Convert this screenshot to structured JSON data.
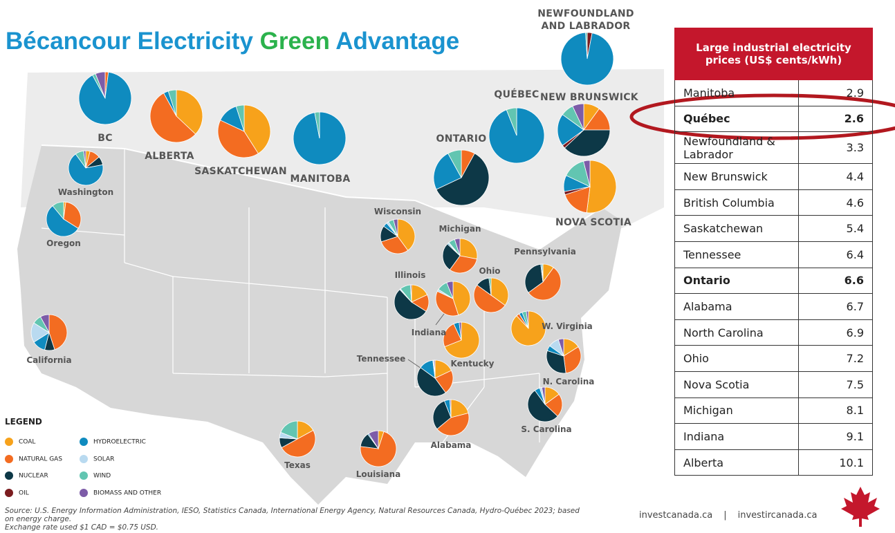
{
  "title": {
    "part1": "Bécancour Electricity",
    "part2": "Green",
    "part3": "Advantage"
  },
  "legend": {
    "title": "LEGEND",
    "items": [
      {
        "label": "COAL",
        "color": "#f7a21b"
      },
      {
        "label": "NATURAL GAS",
        "color": "#f36c21"
      },
      {
        "label": "NUCLEAR",
        "color": "#0d3847"
      },
      {
        "label": "OIL",
        "color": "#7b1c1f"
      },
      {
        "label": "HYDROELECTRIC",
        "color": "#0f8bbf"
      },
      {
        "label": "SOLAR",
        "color": "#b9daf0"
      },
      {
        "label": "WIND",
        "color": "#62c5b1"
      },
      {
        "label": "BIOMASS AND OTHER",
        "color": "#7d5ca8"
      }
    ]
  },
  "regions": [
    {
      "label": "BC",
      "shares": [
        0,
        2,
        0,
        0,
        90,
        0,
        2,
        6
      ]
    },
    {
      "label": "ALBERTA",
      "shares": [
        37,
        55,
        0,
        0,
        3,
        0,
        5,
        0
      ]
    },
    {
      "label": "SASKATCHEWAN",
      "shares": [
        41,
        41,
        0,
        0,
        13,
        0,
        5,
        0
      ]
    },
    {
      "label": "MANITOBA",
      "shares": [
        0,
        0,
        0,
        0,
        97,
        0,
        3,
        0
      ]
    },
    {
      "label": "ONTARIO",
      "shares": [
        0,
        8,
        60,
        0,
        24,
        0,
        8,
        0
      ]
    },
    {
      "label": "QUÉBEC",
      "shares": [
        0,
        0,
        0,
        0,
        94,
        0,
        6,
        0
      ]
    },
    {
      "label": "NEWFOUNDLAND AND LABRADOR",
      "shares": [
        0,
        0,
        0,
        3,
        96,
        0,
        1,
        0
      ]
    },
    {
      "label": "NEW BRUNSWICK",
      "shares": [
        10,
        15,
        38,
        2,
        20,
        0,
        8,
        7
      ]
    },
    {
      "label": "NOVA SCOTIA",
      "shares": [
        52,
        18,
        0,
        2,
        10,
        0,
        14,
        4
      ]
    },
    {
      "label": "Washington",
      "shares": [
        4,
        10,
        8,
        0,
        68,
        0,
        8,
        2
      ]
    },
    {
      "label": "Oregon",
      "shares": [
        2,
        32,
        0,
        0,
        55,
        0,
        11,
        0
      ]
    },
    {
      "label": "California",
      "shares": [
        0,
        45,
        9,
        0,
        12,
        18,
        8,
        8
      ]
    },
    {
      "label": "Wisconsin",
      "shares": [
        40,
        30,
        15,
        0,
        4,
        2,
        5,
        4
      ]
    },
    {
      "label": "Michigan",
      "shares": [
        28,
        32,
        27,
        0,
        1,
        1,
        6,
        5
      ]
    },
    {
      "label": "Pennsylvania",
      "shares": [
        10,
        55,
        33,
        0,
        1,
        0,
        1,
        0
      ]
    },
    {
      "label": "Ohio",
      "shares": [
        35,
        50,
        13,
        0,
        0,
        0,
        2,
        0
      ]
    },
    {
      "label": "Illinois",
      "shares": [
        18,
        16,
        54,
        0,
        0,
        1,
        10,
        1
      ]
    },
    {
      "label": "Indiana",
      "shares": [
        45,
        37,
        0,
        0,
        0,
        2,
        10,
        6
      ]
    },
    {
      "label": "W. Virginia",
      "shares": [
        88,
        3,
        0,
        0,
        3,
        0,
        4,
        2
      ]
    },
    {
      "label": "Kentucky",
      "shares": [
        69,
        24,
        0,
        0,
        5,
        0,
        0,
        2
      ]
    },
    {
      "label": "Tennessee",
      "shares": [
        18,
        22,
        45,
        0,
        13,
        1,
        0,
        1
      ]
    },
    {
      "label": "N. Carolina",
      "shares": [
        16,
        32,
        32,
        0,
        5,
        10,
        0,
        5
      ]
    },
    {
      "label": "S. Carolina",
      "shares": [
        15,
        22,
        53,
        0,
        5,
        2,
        0,
        3
      ]
    },
    {
      "label": "Alabama",
      "shares": [
        21,
        43,
        30,
        0,
        5,
        0,
        0,
        1
      ]
    },
    {
      "label": "Texas",
      "shares": [
        17,
        50,
        9,
        0,
        0,
        5,
        19,
        0
      ]
    },
    {
      "label": "Louisiana",
      "shares": [
        5,
        72,
        13,
        0,
        1,
        0,
        0,
        9
      ]
    }
  ],
  "table": {
    "header": "Large industrial electricity prices (US$ cents/kWh)",
    "rows": [
      {
        "name": "Manitoba",
        "price": 2.9
      },
      {
        "name": "Québec",
        "price": 2.6,
        "bold": true
      },
      {
        "name": "Newfoundland & Labrador",
        "price": 3.3
      },
      {
        "name": "New Brunswick",
        "price": 4.4
      },
      {
        "name": "British Columbia",
        "price": 4.6
      },
      {
        "name": "Saskatchewan",
        "price": 5.4
      },
      {
        "name": "Tennessee",
        "price": 6.4
      },
      {
        "name": "Ontario",
        "price": 6.6,
        "bold": true
      },
      {
        "name": "Alabama",
        "price": 6.7
      },
      {
        "name": "North Carolina",
        "price": 6.9
      },
      {
        "name": "Ohio",
        "price": 7.2
      },
      {
        "name": "Nova Scotia",
        "price": 7.5
      },
      {
        "name": "Michigan",
        "price": 8.1
      },
      {
        "name": "Indiana",
        "price": 9.1
      },
      {
        "name": "Alberta",
        "price": 10.1
      }
    ]
  },
  "source": [
    "Source: U.S. Energy Information Administration, IESO, Statistics Canada, International Energy Agency, Natural Resources Canada, Hydro-Québec 2023; based on energy charge.",
    "Exchange rate used $1 CAD = $0.75 USD."
  ],
  "footer": {
    "left": "investcanada.ca",
    "separator": "|",
    "right": "investircanada.ca"
  }
}
